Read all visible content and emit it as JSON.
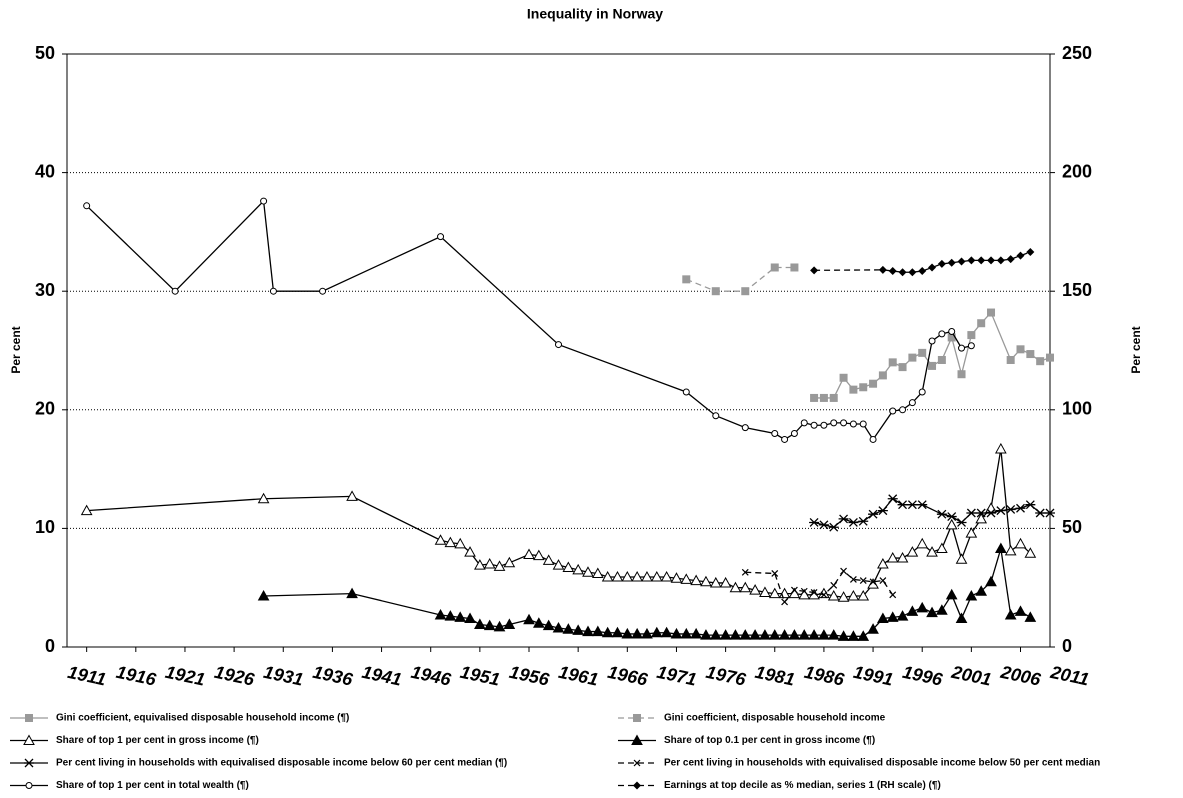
{
  "chart_data": {
    "type": "line",
    "title": "Inequality in Norway",
    "ylabel": "Per cent",
    "y2label": "Per cent",
    "xlim": [
      1909,
      2009
    ],
    "xticks": [
      1911,
      1916,
      1921,
      1926,
      1931,
      1936,
      1941,
      1946,
      1951,
      1956,
      1961,
      1966,
      1971,
      1976,
      1981,
      1986,
      1991,
      1996,
      2001,
      2006,
      2011
    ],
    "ylim": [
      0,
      50
    ],
    "yticks": [
      0,
      10,
      20,
      30,
      40,
      50
    ],
    "y2lim": [
      0,
      250
    ],
    "y2ticks": [
      0,
      50,
      100,
      150,
      200,
      250
    ],
    "grid": true,
    "series": [
      {
        "name": "Gini coefficient, equivalised disposable household income (¶)",
        "color": "#999999",
        "marker": "square",
        "dash": false,
        "x": [
          1985,
          1986,
          1987,
          1988,
          1989,
          1990,
          1991,
          1992,
          1993,
          1994,
          1995,
          1996,
          1997,
          1998,
          1999,
          2000,
          2001,
          2002,
          2003,
          2005,
          2006,
          2007,
          2008,
          2009
        ],
        "values": [
          21,
          21,
          21,
          22.7,
          21.7,
          21.9,
          22.2,
          22.9,
          24,
          23.6,
          24.4,
          24.8,
          23.7,
          24.2,
          26.1,
          23,
          26.3,
          27.3,
          28.2,
          24.2,
          25.1,
          24.7,
          24.1,
          24.4
        ]
      },
      {
        "name": "Gini coefficient, disposable household income",
        "color": "#999999",
        "marker": "square",
        "dash": true,
        "x": [
          1972,
          1975,
          1978,
          1981,
          1983
        ],
        "values": [
          31,
          30,
          30,
          32,
          32
        ]
      },
      {
        "name": "Share of top 1 per cent in gross income (¶)",
        "color": "#000000",
        "marker": "triangle-open",
        "dash": false,
        "x": [
          1911,
          1929,
          1938,
          1947,
          1948,
          1949,
          1950,
          1951,
          1952,
          1953,
          1954,
          1956,
          1957,
          1958,
          1959,
          1960,
          1961,
          1962,
          1963,
          1964,
          1965,
          1966,
          1967,
          1968,
          1969,
          1970,
          1971,
          1972,
          1973,
          1974,
          1975,
          1976,
          1977,
          1978,
          1979,
          1980,
          1981,
          1982,
          1983,
          1984,
          1985,
          1986,
          1987,
          1988,
          1989,
          1990,
          1991,
          1992,
          1993,
          1994,
          1995,
          1996,
          1997,
          1998,
          1999,
          2000,
          2001,
          2002,
          2003,
          2004,
          2005,
          2006,
          2007
        ],
        "values": [
          11.5,
          12.5,
          12.7,
          9,
          8.8,
          8.7,
          8,
          6.9,
          7,
          6.8,
          7.1,
          7.8,
          7.7,
          7.3,
          6.9,
          6.7,
          6.5,
          6.3,
          6.2,
          5.9,
          5.9,
          5.9,
          5.9,
          5.9,
          5.9,
          5.9,
          5.8,
          5.7,
          5.6,
          5.5,
          5.4,
          5.4,
          5.0,
          5.0,
          4.8,
          4.6,
          4.5,
          4.5,
          4.5,
          4.4,
          4.4,
          4.5,
          4.3,
          4.2,
          4.3,
          4.3,
          5.3,
          7,
          7.5,
          7.5,
          8,
          8.7,
          8,
          8.3,
          10.3,
          7.4,
          9.6,
          10.8,
          11.7,
          16.7,
          8.1,
          8.7,
          7.9
        ]
      },
      {
        "name": "Share of top 0.1 per cent in gross income (¶)",
        "color": "#000000",
        "marker": "triangle",
        "dash": false,
        "x": [
          1929,
          1938,
          1947,
          1948,
          1949,
          1950,
          1951,
          1952,
          1953,
          1954,
          1956,
          1957,
          1958,
          1959,
          1960,
          1961,
          1962,
          1963,
          1964,
          1965,
          1966,
          1967,
          1968,
          1969,
          1970,
          1971,
          1972,
          1973,
          1974,
          1975,
          1976,
          1977,
          1978,
          1979,
          1980,
          1981,
          1982,
          1983,
          1984,
          1985,
          1986,
          1987,
          1988,
          1989,
          1990,
          1991,
          1992,
          1993,
          1994,
          1995,
          1996,
          1997,
          1998,
          1999,
          2000,
          2001,
          2002,
          2003,
          2004,
          2005,
          2006,
          2007
        ],
        "values": [
          4.3,
          4.5,
          2.7,
          2.6,
          2.5,
          2.4,
          1.9,
          1.8,
          1.7,
          1.9,
          2.3,
          2.0,
          1.8,
          1.6,
          1.5,
          1.4,
          1.3,
          1.3,
          1.2,
          1.2,
          1.1,
          1.1,
          1.1,
          1.2,
          1.2,
          1.1,
          1.1,
          1.1,
          1.0,
          1.0,
          1.0,
          1.0,
          1.0,
          1.0,
          1.0,
          1.0,
          1.0,
          1.0,
          1.0,
          1.0,
          1.0,
          1.0,
          0.9,
          0.9,
          0.9,
          1.5,
          2.4,
          2.5,
          2.6,
          3.0,
          3.3,
          2.9,
          3.1,
          4.4,
          2.4,
          4.3,
          4.7,
          5.5,
          8.3,
          2.7,
          3.0,
          2.5
        ]
      },
      {
        "name": "Per cent living in households with equivalised disposable income below 60 per cent median (¶)",
        "color": "#000000",
        "marker": "asterisk",
        "dash": false,
        "x": [
          1985,
          1986,
          1987,
          1988,
          1989,
          1990,
          1991,
          1992,
          1993,
          1994,
          1995,
          1996,
          1998,
          1999,
          2000,
          2001,
          2002,
          2003,
          2004,
          2005,
          2006,
          2007,
          2008,
          2009
        ],
        "values": [
          10.5,
          10.3,
          10.1,
          10.8,
          10.5,
          10.6,
          11.2,
          11.5,
          12.5,
          12,
          12,
          12,
          11.2,
          11,
          10.5,
          11.3,
          11.3,
          11.3,
          11.5,
          11.6,
          11.7,
          12,
          11.3,
          11.3
        ]
      },
      {
        "name": "Per cent living in households with equivalised disposable income below 50 per cent median",
        "color": "#000000",
        "marker": "x",
        "dash": true,
        "x": [
          1978,
          1981,
          1982,
          1983,
          1984,
          1985,
          1986,
          1987,
          1988,
          1989,
          1990,
          1991,
          1992,
          1993
        ],
        "values": [
          6.3,
          6.2,
          3.8,
          4.8,
          4.7,
          4.6,
          4.4,
          5.2,
          6.4,
          5.7,
          5.6,
          5.5,
          5.6,
          4.4
        ]
      },
      {
        "name": "Share of top 1 per cent in total wealth (¶)",
        "color": "#000000",
        "marker": "circle-open",
        "dash": false,
        "x": [
          1911,
          1920,
          1929,
          1930,
          1935,
          1947,
          1959,
          1972,
          1975,
          1978,
          1981,
          1982,
          1983,
          1984,
          1985,
          1986,
          1987,
          1988,
          1989,
          1990,
          1991,
          1993,
          1994,
          1995,
          1996,
          1997,
          1998,
          1999,
          2000,
          2001
        ],
        "values": [
          37.2,
          30,
          37.6,
          30,
          30,
          34.6,
          25.5,
          21.5,
          19.5,
          18.5,
          18,
          17.5,
          18,
          18.9,
          18.7,
          18.7,
          18.9,
          18.9,
          18.8,
          18.8,
          17.5,
          19.9,
          20,
          20.6,
          21.5,
          25.8,
          26.4,
          26.6,
          25.2,
          25.4
        ]
      },
      {
        "name": "Earnings at top decile as % median, series 1 (RH scale) (¶)",
        "color": "#000000",
        "marker": "diamond",
        "dash": true,
        "axis": "y2",
        "x": [
          1985,
          1992,
          1993,
          1994,
          1995,
          1996,
          1997,
          1998,
          1999,
          2000,
          2001,
          2002,
          2003,
          2004,
          2005,
          2006,
          2007
        ],
        "values": [
          158.8,
          159,
          158.5,
          158,
          158,
          158.5,
          160,
          161.5,
          162,
          162.5,
          163,
          163,
          163,
          163,
          163.5,
          165,
          166.5
        ]
      }
    ]
  }
}
